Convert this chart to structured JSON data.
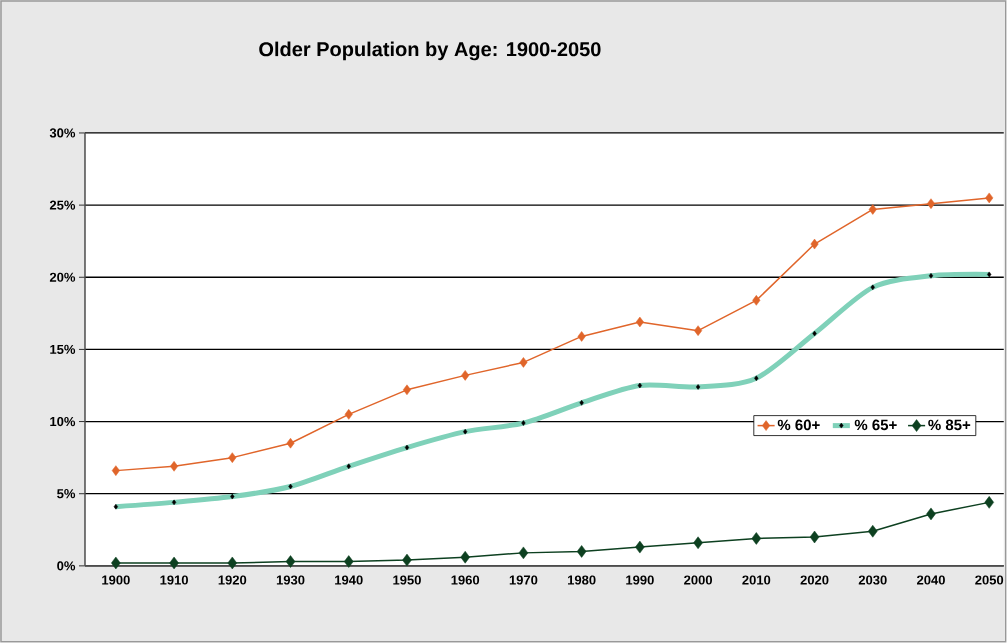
{
  "chart_data": {
    "type": "line",
    "title": "Older Population by Age: 1900-2050",
    "categories": [
      "1900",
      "1910",
      "1920",
      "1930",
      "1940",
      "1950",
      "1960",
      "1970",
      "1980",
      "1990",
      "2000",
      "2010",
      "2020",
      "2030",
      "2040",
      "2050"
    ],
    "series": [
      {
        "name": "% 60+",
        "color": "#e0652a",
        "values": [
          6.6,
          6.9,
          7.5,
          8.5,
          10.5,
          12.2,
          13.2,
          14.1,
          15.9,
          16.9,
          16.3,
          18.4,
          22.3,
          24.7,
          25.1,
          25.5
        ]
      },
      {
        "name": "% 65+",
        "color": "#7fd1b9",
        "values": [
          4.1,
          4.4,
          4.8,
          5.5,
          6.9,
          8.2,
          9.3,
          9.9,
          11.3,
          12.5,
          12.4,
          13.0,
          16.1,
          19.3,
          20.1,
          20.2
        ]
      },
      {
        "name": "% 85+",
        "color": "#0d4020",
        "values": [
          0.2,
          0.2,
          0.2,
          0.3,
          0.3,
          0.4,
          0.6,
          0.9,
          1.0,
          1.3,
          1.6,
          1.9,
          2.0,
          2.4,
          3.6,
          4.4
        ]
      }
    ],
    "ylim": [
      0,
      30
    ],
    "yticks": [
      {
        "value": 0,
        "label": "0%"
      },
      {
        "value": 5,
        "label": "5%"
      },
      {
        "value": 10,
        "label": "10%"
      },
      {
        "value": 15,
        "label": "15%"
      },
      {
        "value": 20,
        "label": "20%"
      },
      {
        "value": 25,
        "label": "25%"
      },
      {
        "value": 30,
        "label": "30%"
      }
    ],
    "grid": "y",
    "legend": "right",
    "marker": "diamond",
    "line_style": "solid"
  }
}
